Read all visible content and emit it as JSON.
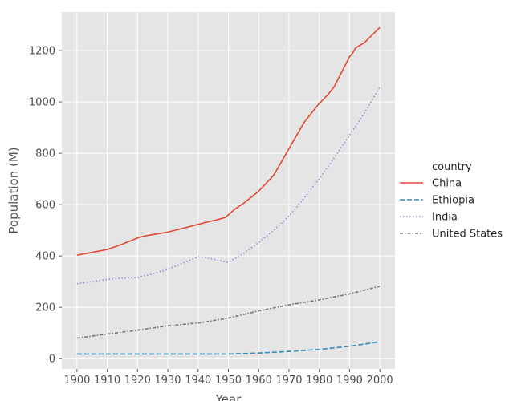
{
  "chart_data": {
    "type": "line",
    "xlabel": "Year",
    "ylabel": "Population (M)",
    "xlim": [
      1895,
      2005
    ],
    "ylim": [
      -40,
      1350
    ],
    "x_ticks": [
      1900,
      1910,
      1920,
      1930,
      1940,
      1950,
      1960,
      1970,
      1980,
      1990,
      2000
    ],
    "y_ticks": [
      0,
      200,
      400,
      600,
      800,
      1000,
      1200
    ],
    "grid": true,
    "legend": {
      "title": "country",
      "placement": "right"
    },
    "series": [
      {
        "name": "China",
        "color": "#e24a33",
        "dash": "solid",
        "x": [
          1900,
          1905,
          1910,
          1915,
          1920,
          1922,
          1925,
          1930,
          1935,
          1940,
          1943,
          1946,
          1949,
          1950,
          1952,
          1955,
          1960,
          1965,
          1970,
          1975,
          1980,
          1981,
          1982,
          1983,
          1985,
          1990,
          1991,
          1992,
          1995,
          2000
        ],
        "y": [
          403,
          414,
          425,
          446,
          470,
          477,
          483,
          493,
          508,
          523,
          532,
          540,
          550,
          560,
          581,
          605,
          652,
          715,
          818,
          920,
          995,
          1005,
          1018,
          1030,
          1060,
          1176,
          1190,
          1210,
          1232,
          1290
        ]
      },
      {
        "name": "Ethiopia",
        "color": "#348abd",
        "dash": "dashed",
        "x": [
          1900,
          1910,
          1920,
          1930,
          1940,
          1950,
          1960,
          1970,
          1980,
          1990,
          2000
        ],
        "y": [
          18,
          18,
          18,
          18,
          18,
          18,
          22,
          28,
          36,
          48,
          66
        ]
      },
      {
        "name": "India",
        "color": "#988ed5",
        "dash": "dotted",
        "x": [
          1900,
          1905,
          1910,
          1915,
          1920,
          1925,
          1930,
          1935,
          1940,
          1943,
          1947,
          1950,
          1955,
          1960,
          1965,
          1970,
          1975,
          1980,
          1985,
          1990,
          1995,
          2000
        ],
        "y": [
          292,
          300,
          309,
          314,
          316,
          330,
          348,
          372,
          397,
          393,
          382,
          375,
          410,
          452,
          500,
          555,
          625,
          700,
          783,
          870,
          958,
          1058
        ]
      },
      {
        "name": "United States",
        "color": "#777777",
        "dash": "dashdot",
        "x": [
          1900,
          1910,
          1920,
          1930,
          1940,
          1950,
          1960,
          1970,
          1980,
          1990,
          2000
        ],
        "y": [
          80,
          96,
          111,
          128,
          139,
          158,
          186,
          210,
          229,
          252,
          282
        ]
      }
    ]
  }
}
